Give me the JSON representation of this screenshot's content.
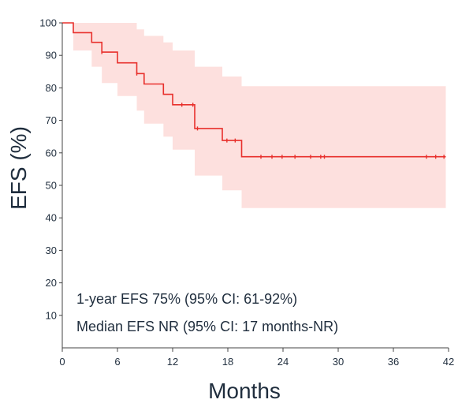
{
  "chart_data": {
    "type": "line",
    "subtype": "kaplan-meier",
    "xlabel": "Months",
    "ylabel": "EFS (%)",
    "xlim": [
      0,
      42
    ],
    "ylim": [
      0,
      100
    ],
    "xticks": [
      0,
      6,
      12,
      18,
      24,
      30,
      36,
      42
    ],
    "yticks": [
      10,
      20,
      30,
      40,
      50,
      60,
      70,
      80,
      90,
      100
    ],
    "grid": false,
    "colors": {
      "line": "#e8302c",
      "band": "#fde0de",
      "axis": "#444444",
      "text": "#1f2d3d"
    },
    "series": [
      {
        "x": [
          0,
          1.2,
          3.2,
          4.3,
          6.0,
          8.1,
          8.9,
          11.0,
          12.0,
          14.4,
          17.4,
          19.5,
          41.7
        ],
        "y": [
          100,
          97,
          94,
          91,
          87.7,
          84.4,
          81.2,
          78,
          74.8,
          67.5,
          63.8,
          58.8,
          58.8
        ],
        "ci_upper": [
          100,
          100,
          100,
          100,
          100,
          98,
          96,
          94,
          91.5,
          86.5,
          83.5,
          80.5,
          80.5
        ],
        "ci_lower": [
          100,
          91.5,
          86.5,
          81.5,
          77.5,
          73,
          69,
          65,
          61,
          53,
          48.5,
          43,
          43
        ],
        "censor_x": [
          4.3,
          8.1,
          13.0,
          14.2,
          14.7,
          17.9,
          18.8,
          21.6,
          22.8,
          23.9,
          25.3,
          27.0,
          28.1,
          28.5,
          39.6,
          40.6,
          41.5
        ]
      }
    ],
    "annotations": [
      "1-year EFS 75% (95% CI: 61-92%)",
      "Median EFS NR (95% CI: 17 months-NR)"
    ]
  }
}
